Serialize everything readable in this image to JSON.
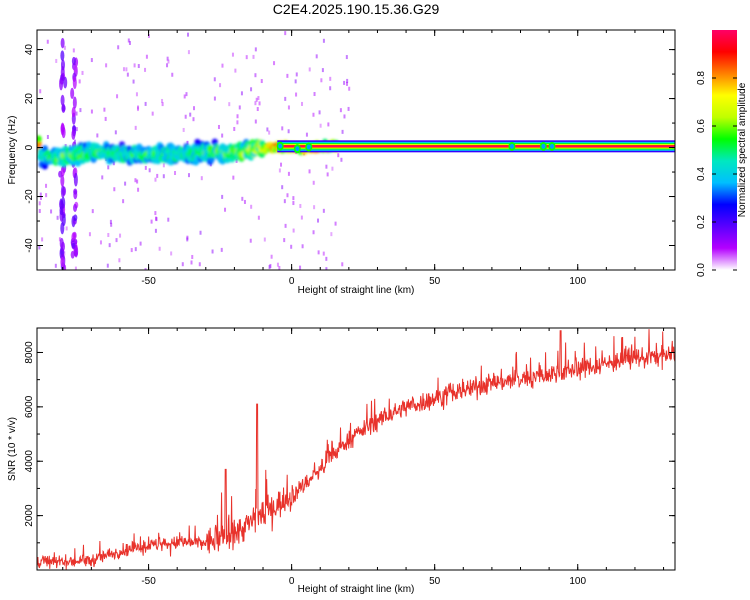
{
  "figure": {
    "title": "C2E4.2025.190.15.36.G29"
  },
  "chart_data": [
    {
      "type": "heatmap",
      "xlabel": "Height of straight line (km)",
      "ylabel": "Frequency (Hz)",
      "xlim": [
        -89,
        134
      ],
      "ylim": [
        -50,
        48
      ],
      "xticks": [
        -50,
        0,
        50,
        100
      ],
      "yticks": [
        -40,
        -20,
        0,
        20,
        40
      ],
      "colorbar": {
        "label": "Normalized spectral amplitude",
        "range": [
          0,
          1
        ],
        "ticks": [
          "0.0",
          "0.2",
          "0.4",
          "0.6",
          "0.8"
        ],
        "colors": [
          "#ffffff",
          "#b400ff",
          "#5a00ff",
          "#0000ff",
          "#00bfff",
          "#00e8c0",
          "#00ff00",
          "#c0ff00",
          "#ffff00",
          "#ff8000",
          "#ff0000",
          "#ff0066"
        ]
      },
      "ridge": [
        {
          "x": -88,
          "y": -3.5,
          "amp": 0.5
        },
        {
          "x": -80,
          "y": -4,
          "amp": 0.6
        },
        {
          "x": -70,
          "y": -2,
          "amp": 0.55
        },
        {
          "x": -60,
          "y": -3,
          "amp": 0.5
        },
        {
          "x": -50,
          "y": -2.5,
          "amp": 0.55
        },
        {
          "x": -40,
          "y": -3,
          "amp": 0.5
        },
        {
          "x": -30,
          "y": -2,
          "amp": 0.55
        },
        {
          "x": -20,
          "y": -2,
          "amp": 0.6
        },
        {
          "x": -12,
          "y": -0.5,
          "amp": 0.75
        },
        {
          "x": -5,
          "y": 0.5,
          "amp": 0.95
        },
        {
          "x": 0,
          "y": 0,
          "amp": 0.9
        },
        {
          "x": 5,
          "y": -0.5,
          "amp": 0.9
        },
        {
          "x": 10,
          "y": 0.5,
          "amp": 0.95
        },
        {
          "x": 20,
          "y": 0.5,
          "amp": 1.0
        },
        {
          "x": 134,
          "y": 0.5,
          "amp": 1.0
        }
      ],
      "bursts": [
        {
          "x": -80,
          "y_range": [
            -50,
            48
          ]
        },
        {
          "x": -76,
          "y_range": [
            -45,
            40
          ]
        }
      ]
    },
    {
      "type": "line",
      "xlabel": "Height of straight line (km)",
      "ylabel": "SNR (10 * v/v)",
      "xlim": [
        -89,
        134
      ],
      "ylim": [
        0,
        8900
      ],
      "xticks": [
        -50,
        0,
        50,
        100
      ],
      "yticks": [
        2000,
        4000,
        6000,
        8000
      ],
      "series": [
        {
          "color": "#e8322b",
          "trend": {
            "x": [
              -89,
              -80,
              -70,
              -60,
              -50,
              -40,
              -30,
              -20,
              -15,
              -10,
              -5,
              0,
              5,
              10,
              15,
              20,
              30,
              40,
              50,
              60,
              70,
              80,
              90,
              100,
              110,
              120,
              134
            ],
            "y": [
              300,
              300,
              350,
              700,
              900,
              1000,
              1000,
              1300,
              1700,
              2100,
              2400,
              2700,
              3200,
              3700,
              4300,
              4800,
              5500,
              6000,
              6300,
              6600,
              6900,
              7000,
              7200,
              7400,
              7600,
              7800,
              7900
            ]
          },
          "spikes": [
            {
              "x": -12,
              "y": 6100
            },
            {
              "x": -23,
              "y": 3700
            },
            {
              "x": 94,
              "y": 8800
            }
          ]
        }
      ]
    }
  ]
}
